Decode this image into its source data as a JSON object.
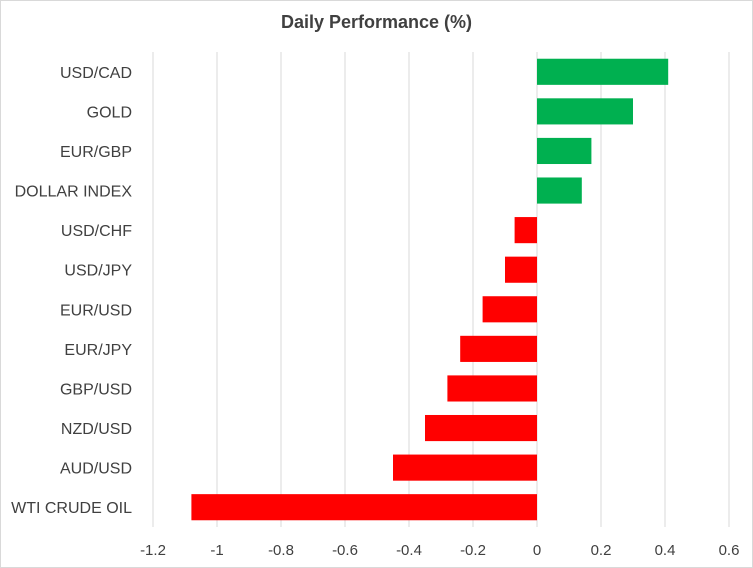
{
  "chart_data": {
    "type": "bar",
    "orientation": "horizontal",
    "title": "Daily Performance (%)",
    "categories": [
      "USD/CAD",
      "GOLD",
      "EUR/GBP",
      "DOLLAR INDEX",
      "USD/CHF",
      "USD/JPY",
      "EUR/USD",
      "EUR/JPY",
      "GBP/USD",
      "NZD/USD",
      "AUD/USD",
      "WTI CRUDE OIL"
    ],
    "values": [
      0.41,
      0.3,
      0.17,
      0.14,
      -0.07,
      -0.1,
      -0.17,
      -0.24,
      -0.28,
      -0.35,
      -0.45,
      -1.08
    ],
    "xlim": [
      -1.2,
      0.6
    ],
    "xticks": [
      -1.2,
      -1,
      -0.8,
      -0.6,
      -0.4,
      -0.2,
      0,
      0.2,
      0.4,
      0.6
    ],
    "xtick_labels": [
      "-1.2",
      "-1",
      "-0.8",
      "-0.6",
      "-0.4",
      "-0.2",
      "0",
      "0.2",
      "0.4",
      "0.6"
    ],
    "grid": "vertical",
    "colors": {
      "positive": "#00b050",
      "negative": "#ff0000",
      "grid": "#d9d9d9",
      "text": "#404040"
    }
  }
}
